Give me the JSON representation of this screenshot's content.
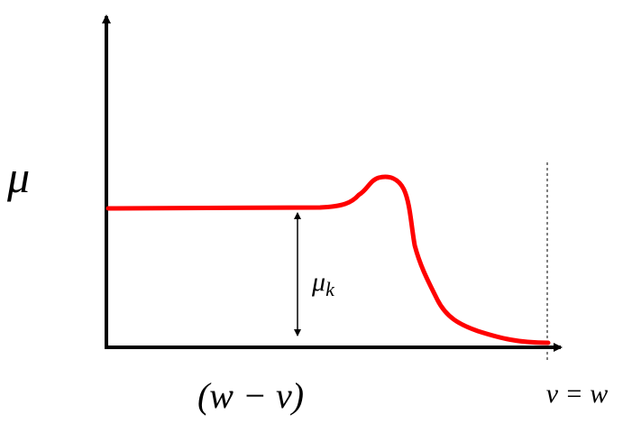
{
  "y_axis_label": "μ",
  "x_axis_label": "(w − v)",
  "end_label": "v = w",
  "kinetic_label": {
    "base": "μ",
    "sub": "k"
  }
}
